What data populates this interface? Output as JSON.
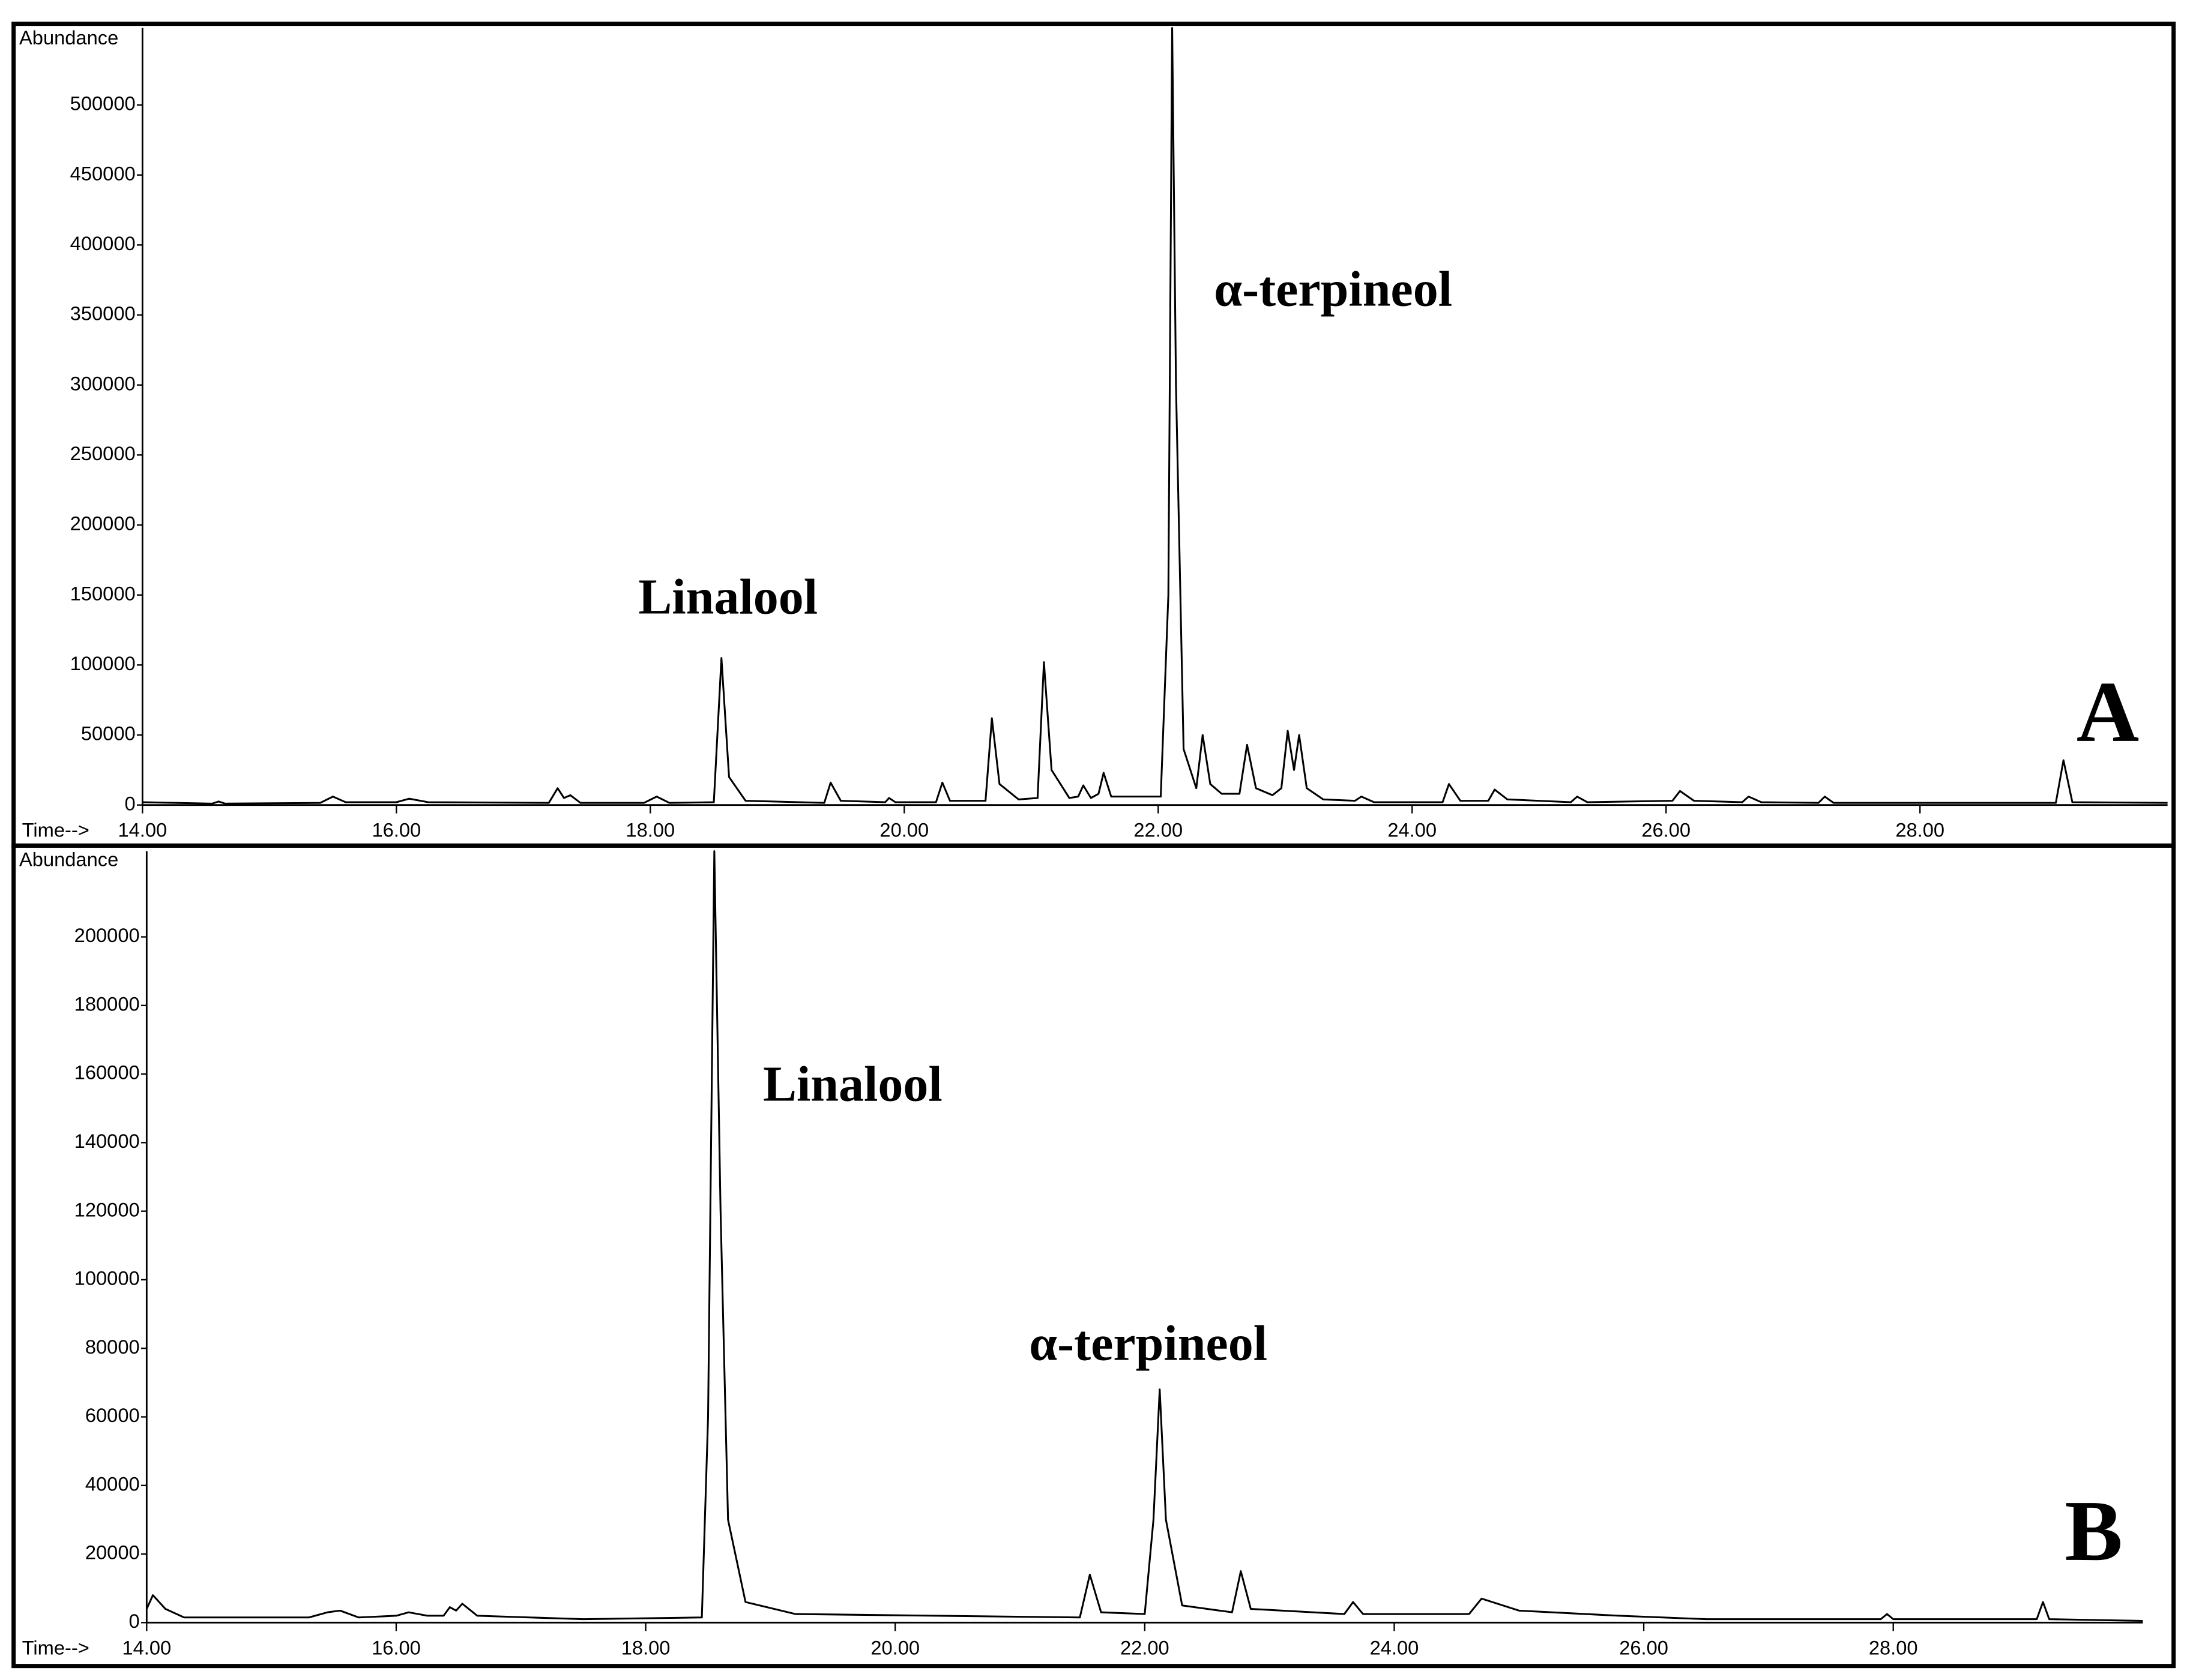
{
  "chart_data": [
    {
      "type": "line",
      "panel_label": "A",
      "y_label": "Abundance",
      "x_label": "Time-->",
      "annotations": [
        "Linalool",
        "α-terpineol"
      ],
      "x": [
        14.0,
        14.55,
        14.6,
        14.65,
        15.4,
        15.5,
        15.6,
        16.0,
        16.1,
        16.25,
        17.2,
        17.27,
        17.32,
        17.37,
        17.45,
        17.95,
        18.05,
        18.15,
        18.5,
        18.56,
        18.62,
        18.75,
        19.37,
        19.42,
        19.5,
        19.85,
        19.88,
        19.93,
        20.25,
        20.3,
        20.36,
        20.64,
        20.69,
        20.75,
        20.9,
        21.05,
        21.1,
        21.16,
        21.3,
        21.37,
        21.41,
        21.47,
        21.53,
        21.57,
        21.63,
        22.02,
        22.08,
        22.11,
        22.14,
        22.2,
        22.3,
        22.35,
        22.41,
        22.5,
        22.64,
        22.7,
        22.77,
        22.9,
        22.97,
        23.02,
        23.07,
        23.11,
        23.17,
        23.3,
        23.55,
        23.6,
        23.7,
        24.24,
        24.29,
        24.38,
        24.6,
        24.65,
        24.75,
        25.25,
        25.3,
        25.38,
        26.05,
        26.11,
        26.22,
        26.6,
        26.65,
        26.75,
        27.2,
        27.25,
        27.32,
        29.07,
        29.13,
        29.2,
        29.95
      ],
      "series": [
        {
          "color": "#000000",
          "values": [
            2000,
            1000,
            2500,
            1000,
            1500,
            6000,
            2000,
            2000,
            4500,
            2000,
            1500,
            12000,
            5000,
            7000,
            1500,
            1500,
            6000,
            1500,
            2000,
            105000,
            20000,
            3000,
            1500,
            16000,
            3000,
            2000,
            5000,
            2000,
            2000,
            16000,
            3000,
            3000,
            62000,
            15000,
            4000,
            5000,
            102000,
            25000,
            5000,
            6000,
            14000,
            5000,
            8000,
            23000,
            6000,
            6000,
            150000,
            555000,
            300000,
            40000,
            12000,
            50000,
            15000,
            8000,
            8000,
            43000,
            12000,
            7000,
            12000,
            53000,
            25000,
            50000,
            12000,
            4000,
            3000,
            6000,
            2000,
            2000,
            15000,
            3000,
            3000,
            11000,
            4000,
            2000,
            6000,
            2000,
            3000,
            10000,
            3000,
            2000,
            6000,
            2000,
            1500,
            6000,
            1500,
            1500,
            32000,
            2000,
            1500
          ]
        }
      ],
      "xlim": [
        14,
        29.95
      ],
      "ylim": [
        0,
        555000
      ],
      "xticks": [
        {
          "value": 14,
          "label": "14.00"
        },
        {
          "value": 16,
          "label": "16.00"
        },
        {
          "value": 18,
          "label": "18.00"
        },
        {
          "value": 20,
          "label": "20.00"
        },
        {
          "value": 22,
          "label": "22.00"
        },
        {
          "value": 24,
          "label": "24.00"
        },
        {
          "value": 26,
          "label": "26.00"
        },
        {
          "value": 28,
          "label": "28.00"
        }
      ],
      "yticks": [
        0,
        50000,
        100000,
        150000,
        200000,
        250000,
        300000,
        350000,
        400000,
        450000,
        500000
      ]
    },
    {
      "type": "line",
      "panel_label": "B",
      "y_label": "Abundance",
      "x_label": "Time-->",
      "annotations": [
        "Linalool",
        "α-terpineol"
      ],
      "x": [
        14.0,
        14.05,
        14.15,
        14.3,
        15.3,
        15.45,
        15.55,
        15.7,
        16.0,
        16.1,
        16.25,
        16.38,
        16.43,
        16.48,
        16.53,
        16.65,
        17.5,
        18.45,
        18.5,
        18.55,
        18.6,
        18.66,
        18.8,
        19.2,
        21.48,
        21.56,
        21.65,
        22.0,
        22.07,
        22.12,
        22.17,
        22.3,
        22.7,
        22.77,
        22.85,
        23.6,
        23.67,
        23.75,
        24.6,
        24.7,
        25.0,
        25.8,
        26.5,
        27.9,
        27.95,
        28.0,
        29.15,
        29.2,
        29.25,
        30.0
      ],
      "series": [
        {
          "color": "#000000",
          "values": [
            4000,
            8000,
            4000,
            1500,
            1500,
            3000,
            3500,
            1500,
            2000,
            3000,
            2000,
            2000,
            4500,
            3500,
            5500,
            2000,
            1000,
            1500,
            60000,
            225000,
            120000,
            30000,
            6000,
            2500,
            1500,
            14000,
            3000,
            2500,
            30000,
            68000,
            30000,
            5000,
            3000,
            15000,
            4000,
            2500,
            6000,
            2500,
            2500,
            7000,
            3500,
            2000,
            1000,
            1000,
            2500,
            1000,
            1000,
            6000,
            1000,
            500
          ]
        }
      ],
      "xlim": [
        14,
        30
      ],
      "ylim": [
        0,
        225000
      ],
      "xticks": [
        {
          "value": 14,
          "label": "14.00"
        },
        {
          "value": 16,
          "label": "16.00"
        },
        {
          "value": 18,
          "label": "18.00"
        },
        {
          "value": 20,
          "label": "20.00"
        },
        {
          "value": 22,
          "label": "22.00"
        },
        {
          "value": 24,
          "label": "24.00"
        },
        {
          "value": 26,
          "label": "26.00"
        },
        {
          "value": 28,
          "label": "28.00"
        }
      ],
      "yticks": [
        0,
        20000,
        40000,
        60000,
        80000,
        100000,
        120000,
        140000,
        160000,
        180000,
        200000
      ]
    }
  ]
}
